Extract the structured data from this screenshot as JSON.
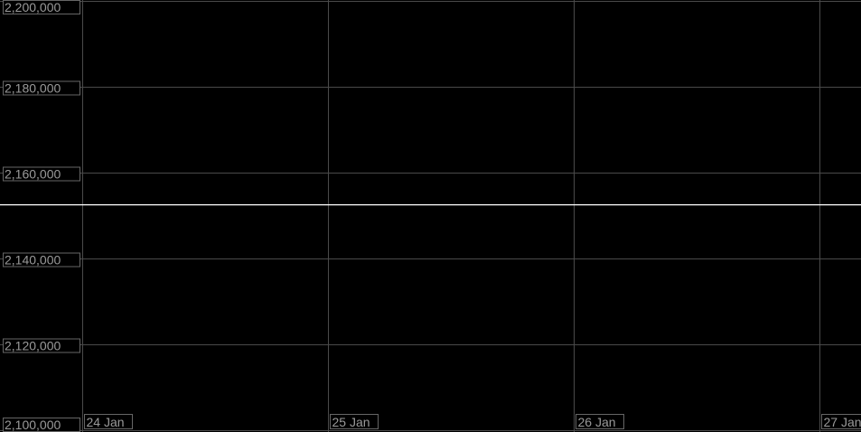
{
  "chart_data": {
    "type": "line",
    "title": "",
    "xlabel": "",
    "ylabel": "",
    "ylim": [
      2100000,
      2200000
    ],
    "yticks": [
      "2,100,000",
      "2,120,000",
      "2,140,000",
      "2,160,000",
      "2,180,000",
      "2,200,000"
    ],
    "ytick_values": [
      2100000,
      2120000,
      2140000,
      2160000,
      2180000,
      2200000
    ],
    "xticks": [
      "24 Jan",
      "25 Jan",
      "26 Jan",
      "27 Jan"
    ],
    "grid": true,
    "colors": {
      "background": "#000000",
      "grid": "#4a4a4a",
      "line": "#ffffff",
      "label": "#9a9a9a"
    },
    "series": [
      {
        "points": [
          {
            "x": "24 Jan",
            "y": 2152500
          },
          {
            "x": "27 Jan",
            "y": 2152500
          }
        ]
      }
    ]
  }
}
